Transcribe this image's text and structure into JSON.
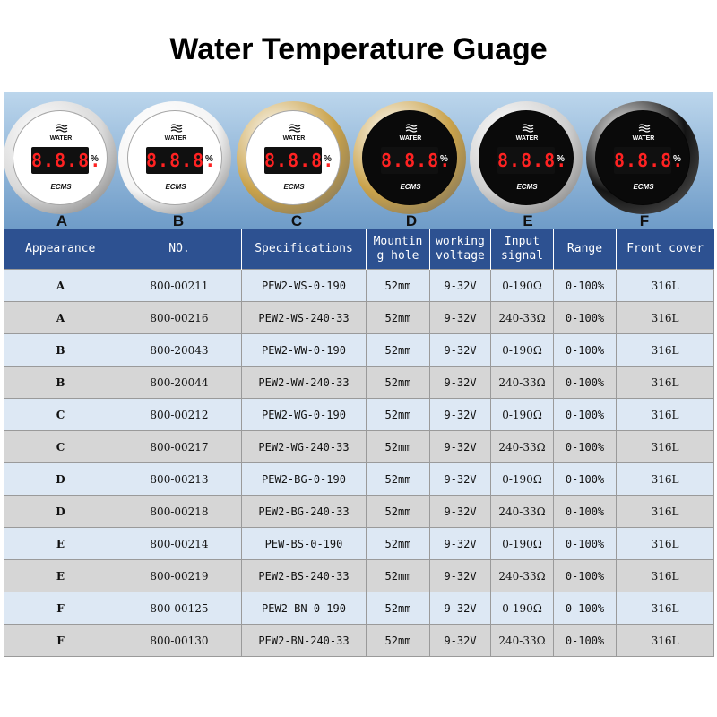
{
  "title": "Water Temperature Guage",
  "gauge_panel": {
    "display_digits": "8.8.8.",
    "percent_sign": "%",
    "face_label": "WATER",
    "brand_label": "ECMS",
    "gauges": [
      {
        "letter": "A",
        "bezel": "#d9d9d9",
        "face": "#ffffff",
        "ink": "#111111"
      },
      {
        "letter": "B",
        "bezel": "#f4f4f4",
        "face": "#ffffff",
        "ink": "#111111"
      },
      {
        "letter": "C",
        "bezel": "#c9a24a",
        "face": "#ffffff",
        "ink": "#111111"
      },
      {
        "letter": "D",
        "bezel": "#c9a24a",
        "face": "#0a0a0a",
        "ink": "#ffffff"
      },
      {
        "letter": "E",
        "bezel": "#cfcfcf",
        "face": "#0a0a0a",
        "ink": "#ffffff"
      },
      {
        "letter": "F",
        "bezel": "#141414",
        "face": "#0a0a0a",
        "ink": "#ffffff"
      }
    ]
  },
  "table": {
    "headers": [
      "Appearance",
      "NO.",
      "Specifications",
      "Mountin\ng hole",
      "working\nvoltage",
      "Input\nsignal",
      "Range",
      "Front cover"
    ],
    "rows": [
      [
        "A",
        "800-00211",
        "PEW2-WS-0-190",
        "52mm",
        "9-32V",
        "0-190Ω",
        "0-100%",
        "316L"
      ],
      [
        "A",
        "800-00216",
        "PEW2-WS-240-33",
        "52mm",
        "9-32V",
        "240-33Ω",
        "0-100%",
        "316L"
      ],
      [
        "B",
        "800-20043",
        "PEW2-WW-0-190",
        "52mm",
        "9-32V",
        "0-190Ω",
        "0-100%",
        "316L"
      ],
      [
        "B",
        "800-20044",
        "PEW2-WW-240-33",
        "52mm",
        "9-32V",
        "240-33Ω",
        "0-100%",
        "316L"
      ],
      [
        "C",
        "800-00212",
        "PEW2-WG-0-190",
        "52mm",
        "9-32V",
        "0-190Ω",
        "0-100%",
        "316L"
      ],
      [
        "C",
        "800-00217",
        "PEW2-WG-240-33",
        "52mm",
        "9-32V",
        "240-33Ω",
        "0-100%",
        "316L"
      ],
      [
        "D",
        "800-00213",
        "PEW2-BG-0-190",
        "52mm",
        "9-32V",
        "0-190Ω",
        "0-100%",
        "316L"
      ],
      [
        "D",
        "800-00218",
        "PEW2-BG-240-33",
        "52mm",
        "9-32V",
        "240-33Ω",
        "0-100%",
        "316L"
      ],
      [
        "E",
        "800-00214",
        "PEW-BS-0-190",
        "52mm",
        "9-32V",
        "0-190Ω",
        "0-100%",
        "316L"
      ],
      [
        "E",
        "800-00219",
        "PEW2-BS-240-33",
        "52mm",
        "9-32V",
        "240-33Ω",
        "0-100%",
        "316L"
      ],
      [
        "F",
        "800-00125",
        "PEW2-BN-0-190",
        "52mm",
        "9-32V",
        "0-190Ω",
        "0-100%",
        "316L"
      ],
      [
        "F",
        "800-00130",
        "PEW2-BN-240-33",
        "52mm",
        "9-32V",
        "240-33Ω",
        "0-100%",
        "316L"
      ]
    ]
  }
}
